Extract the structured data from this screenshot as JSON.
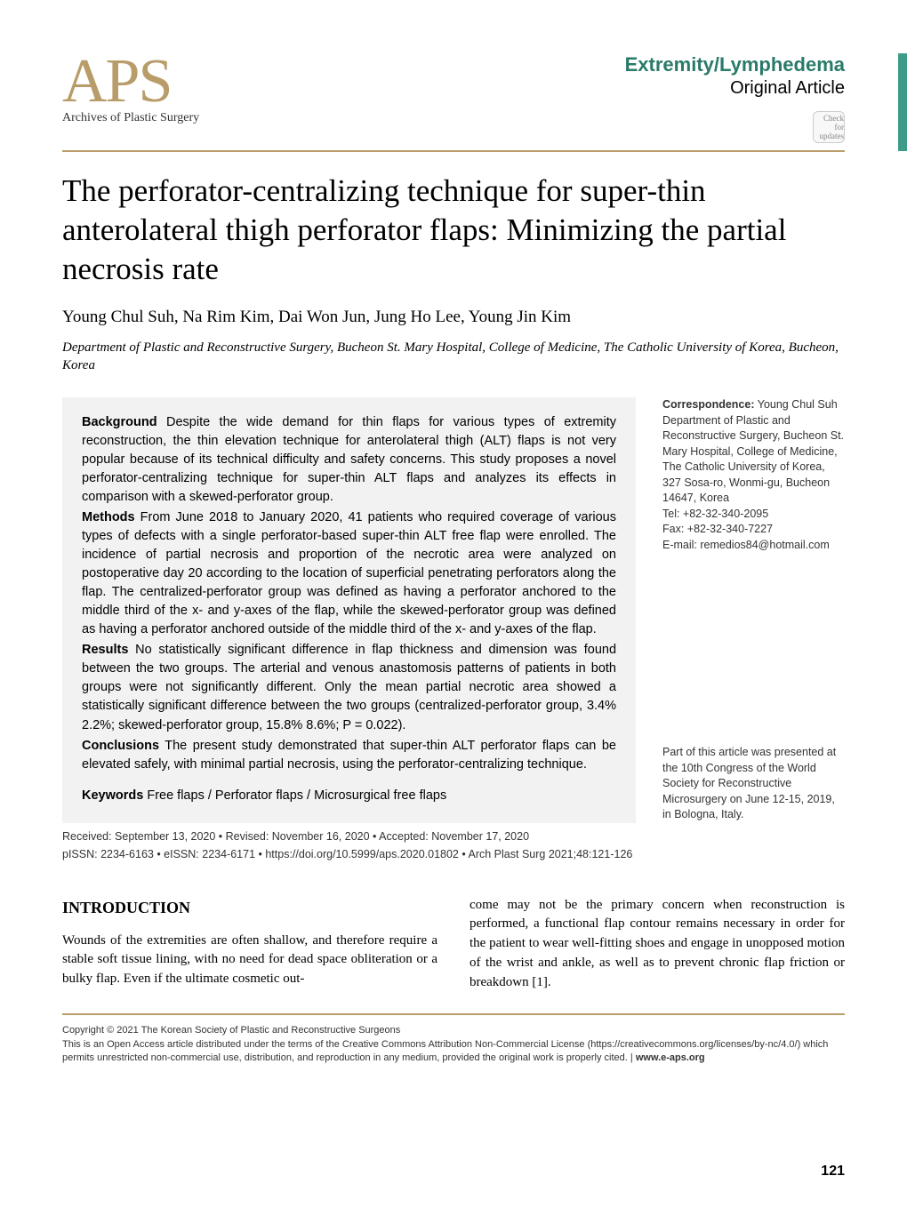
{
  "colors": {
    "accent_gold": "#b89d6a",
    "accent_teal": "#2a7a6a",
    "sidebar_teal": "#3d9b88",
    "abstract_bg": "#f2f2f2",
    "text": "#000000",
    "meta_text": "#333333"
  },
  "header": {
    "logo": "APS",
    "logo_sub": "Archives of Plastic Surgery",
    "category": "Extremity/Lymphedema",
    "article_type": "Original Article",
    "badge_text": "Check for updates"
  },
  "title": "The perforator-centralizing technique for super-thin anterolateral thigh perforator flaps: Minimizing the partial necrosis rate",
  "authors": "Young Chul Suh, Na Rim Kim, Dai Won Jun, Jung Ho Lee, Young Jin Kim",
  "affiliation": "Department of Plastic and Reconstructive Surgery, Bucheon St. Mary Hospital, College of Medicine, The Catholic University of Korea, Bucheon, Korea",
  "abstract": {
    "background_label": "Background",
    "background": "Despite the wide demand for thin flaps for various types of extremity reconstruction, the thin elevation technique for anterolateral thigh (ALT) flaps is not very popular because of its technical difficulty and safety concerns. This study proposes a novel perforator-centralizing technique for super-thin ALT flaps and analyzes its effects in comparison with a skewed-perforator group.",
    "methods_label": "Methods",
    "methods": "From June 2018 to January 2020, 41 patients who required coverage of various types of defects with a single perforator-based super-thin ALT free flap were enrolled. The incidence of partial necrosis and proportion of the necrotic area were analyzed on postoperative day 20 according to the location of superficial penetrating perforators along the flap. The centralized-perforator group was defined as having a perforator anchored to the middle third of the x- and y-axes of the flap, while the skewed-perforator group was defined as having a perforator anchored outside of the middle third of the x- and y-axes of the flap.",
    "results_label": "Results",
    "results": "No statistically significant difference in flap thickness and dimension was found between the two groups. The arterial and venous anastomosis patterns of patients in both groups were not significantly different. Only the mean partial necrotic area showed a statistically significant difference between the two groups (centralized-perforator group, 3.4% 2.2%; skewed-perforator group, 15.8%  8.6%; P = 0.022).",
    "conclusions_label": "Conclusions",
    "conclusions": "The present study demonstrated that super-thin ALT perforator flaps can be elevated safely, with minimal partial necrosis, using the perforator-centralizing technique.",
    "keywords_label": "Keywords",
    "keywords": "Free flaps / Perforator flaps / Microsurgical free flaps"
  },
  "correspondence": {
    "label": "Correspondence:",
    "name": "Young Chul Suh",
    "address": "Department of Plastic and Reconstructive Surgery, Bucheon St. Mary Hospital, College of Medicine, The Catholic University of Korea, 327 Sosa-ro, Wonmi-gu, Bucheon 14647, Korea",
    "tel": "Tel: +82-32-340-2095",
    "fax": "Fax: +82-32-340-7227",
    "email": "E-mail: remedios84@hotmail.com",
    "presented": "Part of this article was presented at the 10th Congress of the World Society for Reconstructive Microsurgery on June 12-15, 2019, in Bologna, Italy."
  },
  "meta": {
    "received": "Received: September 13, 2020 • Revised: November 16, 2020 • Accepted: November 17, 2020",
    "issn": "pISSN: 2234-6163 • eISSN: 2234-6171 • https://doi.org/10.5999/aps.2020.01802 • Arch Plast Surg 2021;48:121-126"
  },
  "intro": {
    "heading": "INTRODUCTION",
    "col1": "Wounds of the extremities are often shallow, and therefore require a stable soft tissue lining, with no need for dead space obliteration or a bulky flap. Even if the ultimate cosmetic out-",
    "col2": "come may not be the primary concern when reconstruction is performed, a functional flap contour remains necessary in order for the patient to wear well-fitting shoes and engage in unopposed motion of the wrist and ankle, as well as to prevent chronic flap friction or breakdown [1]."
  },
  "footer": {
    "copyright": "Copyright © 2021 The Korean Society of Plastic and Reconstructive Surgeons",
    "license": "This is an Open Access article distributed under the terms of the Creative Commons Attribution Non-Commercial License (https://creativecommons.org/licenses/by-nc/4.0/) which permits unrestricted non-commercial use, distribution, and reproduction in any medium, provided the original work is properly cited.  |  ",
    "site": "www.e-aps.org"
  },
  "page_number": "121"
}
